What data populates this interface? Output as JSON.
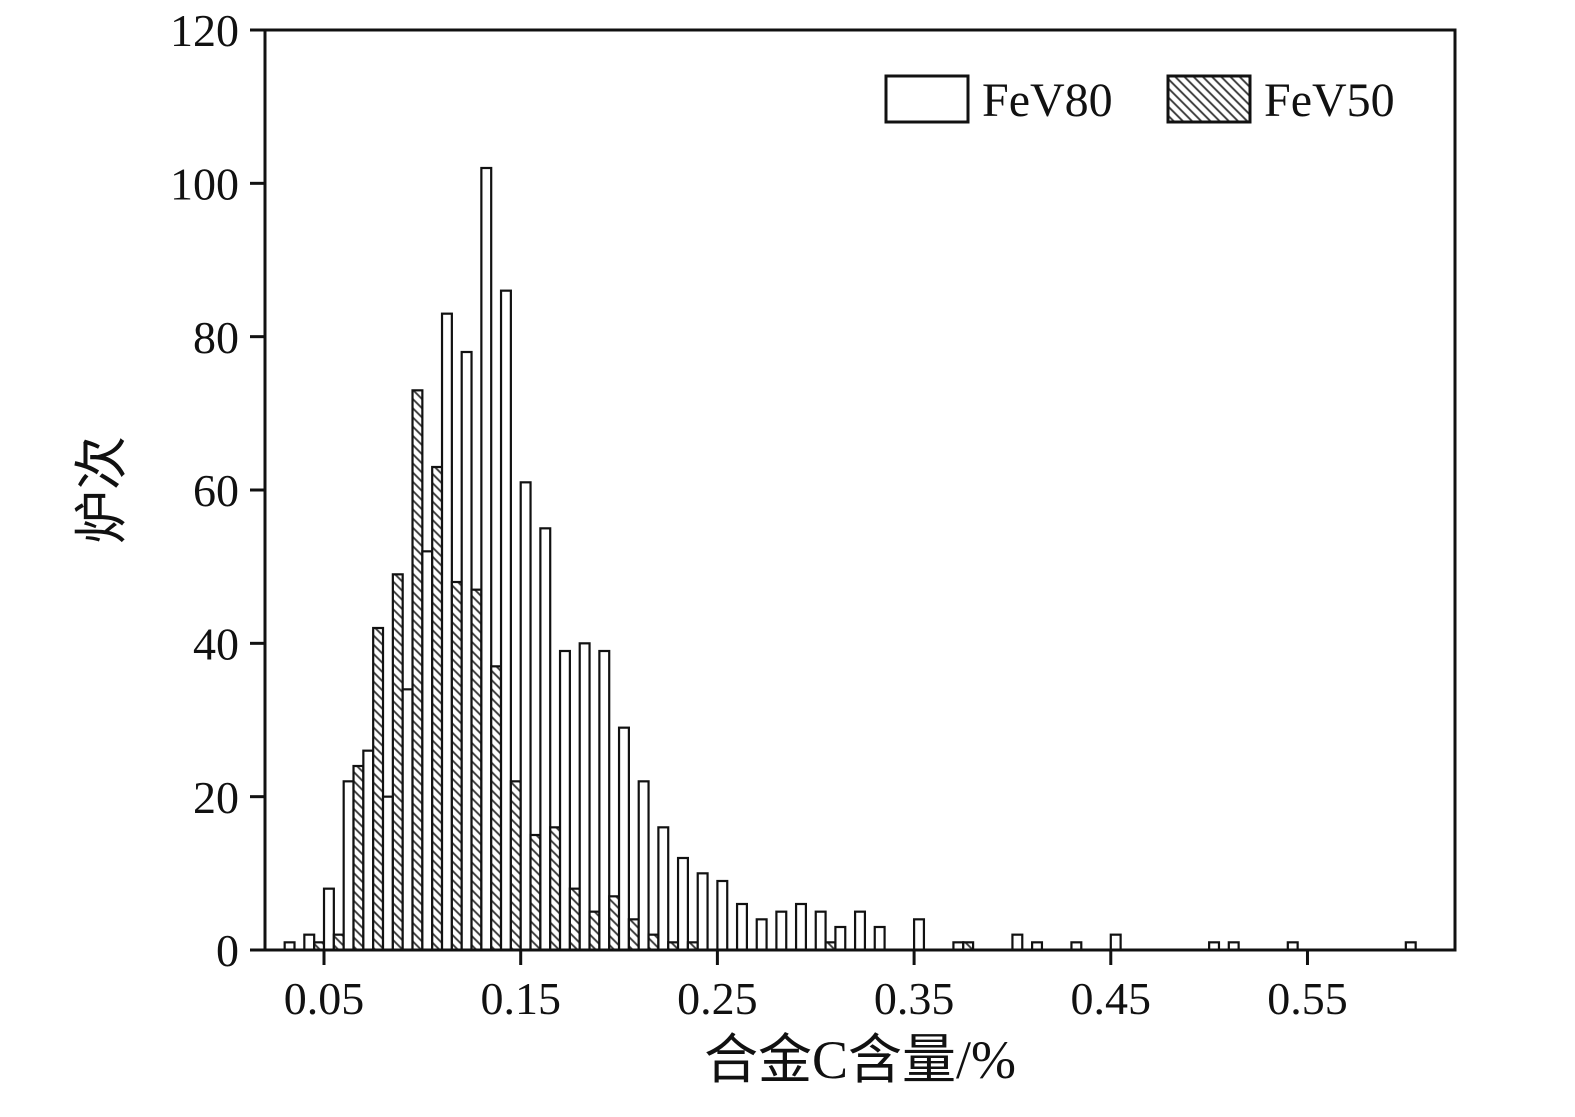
{
  "figure": {
    "background": "#ffffff",
    "axis_color": "#111111",
    "hatch_color": "#3a3a3a"
  },
  "chart_data": {
    "type": "bar",
    "subtype": "grouped-histogram",
    "title": "",
    "xlabel": "合金C含量/%",
    "ylabel": "炉次",
    "xlim": [
      0.02,
      0.625
    ],
    "ylim": [
      0,
      120
    ],
    "xticks": [
      0.05,
      0.15,
      0.25,
      0.35,
      0.45,
      0.55
    ],
    "xtick_labels": [
      "0.05",
      "0.15",
      "0.25",
      "0.35",
      "0.45",
      "0.55"
    ],
    "yticks": [
      0,
      20,
      40,
      60,
      80,
      100,
      120
    ],
    "ytick_labels": [
      "0",
      "20",
      "40",
      "60",
      "80",
      "100",
      "120"
    ],
    "grid": false,
    "legend_position": "top-right-inside",
    "bin_start": 0.03,
    "bin_width": 0.01,
    "bin_count": 58,
    "series": [
      {
        "name": "FeV80",
        "style": "open",
        "values": [
          1,
          2,
          8,
          22,
          26,
          20,
          34,
          52,
          83,
          78,
          102,
          86,
          61,
          55,
          39,
          40,
          39,
          29,
          22,
          16,
          12,
          10,
          9,
          6,
          4,
          5,
          6,
          5,
          3,
          5,
          3,
          0,
          4,
          0,
          1,
          0,
          0,
          2,
          1,
          0,
          1,
          0,
          2,
          0,
          0,
          0,
          0,
          1,
          1,
          0,
          0,
          1,
          0,
          0,
          0,
          0,
          0,
          1
        ]
      },
      {
        "name": "FeV50",
        "style": "hatched",
        "values": [
          0,
          1,
          2,
          24,
          42,
          49,
          73,
          63,
          48,
          47,
          37,
          22,
          15,
          16,
          8,
          5,
          7,
          4,
          2,
          1,
          1,
          0,
          0,
          0,
          0,
          0,
          0,
          1,
          0,
          0,
          0,
          0,
          0,
          0,
          1,
          0,
          0,
          0,
          0,
          0,
          0,
          0,
          0,
          0,
          0,
          0,
          0,
          0,
          0,
          0,
          0,
          0,
          0,
          0,
          0,
          0,
          0,
          0
        ]
      }
    ]
  }
}
